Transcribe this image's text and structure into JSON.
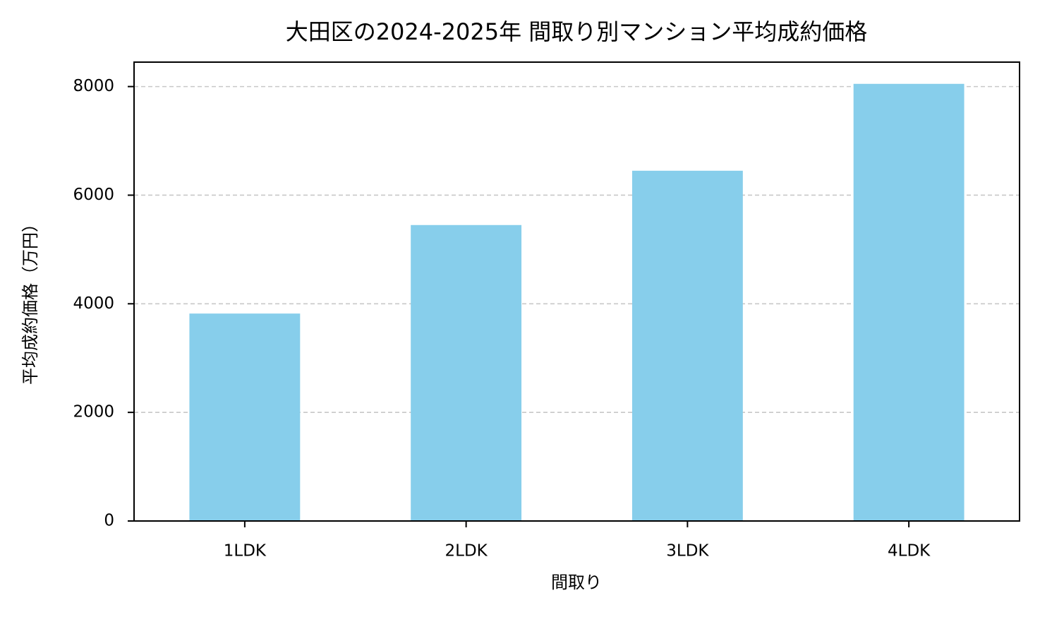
{
  "chart_data": {
    "type": "bar",
    "title": "大田区の2024-2025年 間取り別マンション平均成約価格",
    "x_label": "間取り",
    "y_label": "平均成約価格（万円）",
    "categories": [
      "1LDK",
      "2LDK",
      "3LDK",
      "4LDK"
    ],
    "values": [
      3820,
      5450,
      6450,
      8050
    ],
    "color": "#87ceeb",
    "ylim": [
      0,
      8450
    ],
    "yticks": [
      0,
      2000,
      4000,
      6000,
      8000
    ],
    "grid": true
  }
}
